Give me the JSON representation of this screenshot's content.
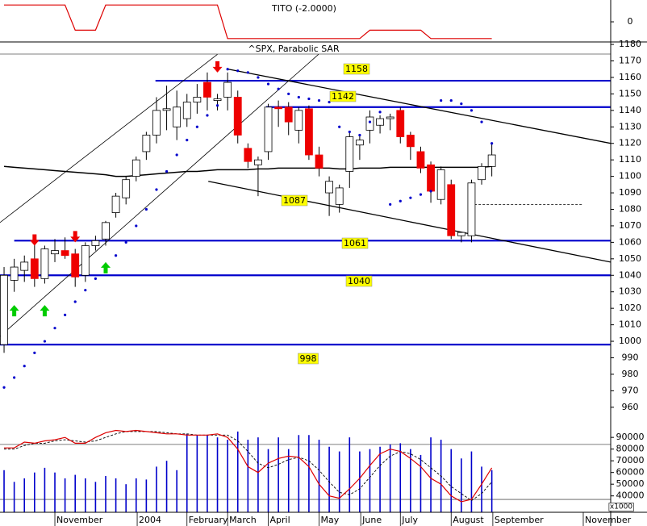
{
  "chart_data": {
    "type": "candlestick",
    "xlim": [
      -0.4,
      59.7
    ],
    "xticks": [
      {
        "value": 5.0,
        "label": "November"
      },
      {
        "value": 13.1,
        "label": "2004"
      },
      {
        "value": 18.0,
        "label": "February"
      },
      {
        "value": 22.0,
        "label": "March"
      },
      {
        "value": 26.0,
        "label": "April"
      },
      {
        "value": 31.0,
        "label": "May"
      },
      {
        "value": 35.1,
        "label": "June"
      },
      {
        "value": 39.0,
        "label": "July"
      },
      {
        "value": 44.0,
        "label": "August"
      },
      {
        "value": 48.1,
        "label": "September"
      },
      {
        "value": 57.0,
        "label": "November"
      }
    ],
    "indicator": {
      "title": "TITO (-2.0000)",
      "color": "#dd0000",
      "ylim": [
        -2.4,
        2.6
      ],
      "yticks": [
        0
      ],
      "values": [
        2,
        2,
        2,
        2,
        2,
        2,
        2,
        -1,
        -1,
        -1,
        2,
        2,
        2,
        2,
        2,
        2,
        2,
        2,
        2,
        2,
        2,
        2,
        -2,
        -2,
        -2,
        -2,
        -2,
        -2,
        -2,
        -2,
        -2,
        -2,
        -2,
        -2,
        -2,
        -2,
        -1,
        -1,
        -1,
        -1,
        -1,
        -1,
        -2,
        -2,
        -2,
        -2,
        -2,
        -2,
        -2
      ]
    },
    "price": {
      "title": "^SPX, Parabolic SAR",
      "ylim": [
        946.7,
        1181.5
      ],
      "yticks": [
        960,
        970,
        980,
        990,
        1000,
        1010,
        1020,
        1030,
        1040,
        1050,
        1060,
        1070,
        1080,
        1090,
        1100,
        1110,
        1120,
        1130,
        1140,
        1150,
        1160,
        1170,
        1180
      ],
      "x": [
        0,
        1,
        2,
        3,
        4,
        5,
        6,
        7,
        8,
        9,
        10,
        11,
        12,
        13,
        14,
        15,
        16,
        17,
        18,
        19,
        20,
        21,
        22,
        23,
        24,
        25,
        26,
        27,
        28,
        29,
        30,
        31,
        32,
        33,
        34,
        35,
        36,
        37,
        38,
        39,
        40,
        41,
        42,
        43,
        44,
        45,
        46,
        47,
        48
      ],
      "open": [
        998,
        1037,
        1043,
        1050,
        1038,
        1053,
        1055,
        1053,
        1040,
        1058,
        1062,
        1078,
        1087,
        1100,
        1115,
        1125,
        1140,
        1130,
        1135,
        1145,
        1157,
        1146,
        1148,
        1148,
        1117,
        1107,
        1115,
        1142,
        1142,
        1128,
        1141,
        1113,
        1090,
        1083,
        1103,
        1119,
        1128,
        1131,
        1135,
        1140,
        1125,
        1115,
        1107,
        1086,
        1095,
        1064,
        1064,
        1098,
        1106
      ],
      "high": [
        1045,
        1050,
        1052,
        1060,
        1058,
        1062,
        1063,
        1056,
        1060,
        1064,
        1073,
        1090,
        1100,
        1112,
        1127,
        1148,
        1155,
        1152,
        1150,
        1156,
        1163,
        1150,
        1163,
        1152,
        1120,
        1112,
        1144,
        1146,
        1145,
        1142,
        1143,
        1118,
        1100,
        1095,
        1127,
        1125,
        1140,
        1137,
        1138,
        1142,
        1127,
        1118,
        1109,
        1106,
        1098,
        1066,
        1098,
        1108,
        1120
      ],
      "low": [
        993,
        1030,
        1036,
        1033,
        1035,
        1048,
        1050,
        1033,
        1036,
        1055,
        1058,
        1075,
        1083,
        1097,
        1110,
        1120,
        1128,
        1122,
        1130,
        1138,
        1140,
        1140,
        1140,
        1120,
        1105,
        1088,
        1110,
        1130,
        1125,
        1120,
        1110,
        1100,
        1076,
        1078,
        1093,
        1110,
        1120,
        1126,
        1128,
        1120,
        1110,
        1102,
        1084,
        1083,
        1062,
        1060,
        1060,
        1095,
        1100
      ],
      "close": [
        1040,
        1045,
        1048,
        1038,
        1056,
        1055,
        1052,
        1039,
        1058,
        1061,
        1072,
        1088,
        1098,
        1110,
        1125,
        1140,
        1141,
        1142,
        1145,
        1148,
        1148,
        1147,
        1157,
        1125,
        1109,
        1110,
        1142,
        1141,
        1133,
        1140,
        1113,
        1105,
        1097,
        1093,
        1124,
        1122,
        1136,
        1135,
        1136,
        1124,
        1118,
        1105,
        1091,
        1104,
        1064,
        1066,
        1096,
        1106,
        1113
      ],
      "up_color": "#ffffff",
      "down_color": "#ee0000",
      "sar": {
        "color": "#0000cc",
        "values": [
          972,
          978,
          985,
          993,
          1000,
          1008,
          1016,
          1024,
          1031,
          1038,
          1045,
          1052,
          1060,
          1070,
          1080,
          1092,
          1103,
          1113,
          1122,
          1130,
          1137,
          1143,
          1165,
          1164,
          1163,
          1160,
          1156,
          1153,
          1150,
          1148,
          1147,
          1146,
          1145,
          1130,
          1127,
          1125,
          1133,
          1139,
          1083,
          1085,
          1087,
          1089,
          1091,
          1146,
          1146,
          1144,
          1140,
          1133,
          1120
        ]
      },
      "ma": {
        "color": "#000000",
        "values": [
          1106,
          1105.5,
          1105,
          1104.5,
          1104,
          1103.5,
          1103,
          1102.5,
          1102,
          1101.5,
          1101,
          1100,
          1100,
          1100.5,
          1101,
          1101.5,
          1102,
          1102.5,
          1103,
          1103,
          1103.5,
          1104,
          1104,
          1104,
          1104,
          1104.5,
          1104.5,
          1105,
          1105,
          1105,
          1105,
          1105,
          1105,
          1104.5,
          1104.5,
          1105,
          1105,
          1105,
          1105.5,
          1105.5,
          1105.5,
          1105.5,
          1105.5,
          1105.5,
          1105.5,
          1105.5,
          1105.5,
          1105.5,
          1106
        ]
      },
      "levels": [
        {
          "value": 1158,
          "from": 14.9
        },
        {
          "value": 1142,
          "from": 25.8
        },
        {
          "value": 1061,
          "from": 1.0
        },
        {
          "value": 1040,
          "from": -0.4
        },
        {
          "value": 998,
          "from": -0.4
        }
      ],
      "level_color": "#0000cc",
      "label_color": "#ffff00",
      "trendlines": [
        {
          "x": [
            22.06,
            59.7
          ],
          "y": [
            1165,
            1120
          ]
        },
        {
          "x": [
            20.1,
            59.7
          ],
          "y": [
            1097,
            1048
          ],
          "label": 1087
        },
        {
          "x": [
            -0.4,
            21.0
          ],
          "y": [
            1072,
            1174
          ]
        },
        {
          "x": [
            -0.4,
            30.95
          ],
          "y": [
            1003,
            1174
          ]
        },
        {
          "x": [
            45.9,
            56.9
          ],
          "y": [
            1083,
            1083
          ],
          "dashed": true
        }
      ],
      "buy_signals": {
        "color": "#00cc00",
        "x": [
          1,
          4,
          10
        ],
        "y": [
          1022,
          1022,
          1048
        ]
      },
      "sell_signals": {
        "color": "#ee0000",
        "x": [
          3,
          7,
          21
        ],
        "y": [
          1058,
          1060,
          1163
        ]
      }
    },
    "volume": {
      "ylim": [
        26000,
        97000
      ],
      "yticks": [
        40000,
        50000,
        60000,
        70000,
        80000,
        90000
      ],
      "unit_label": "x1000",
      "bar_color": "#0000cc",
      "hlines": [
        84000,
        37000
      ],
      "values": [
        62000,
        52000,
        55000,
        60000,
        64000,
        60000,
        55000,
        58000,
        55000,
        52000,
        57000,
        55000,
        50000,
        55000,
        54000,
        65000,
        70000,
        62000,
        93000,
        92000,
        92000,
        90000,
        88000,
        95000,
        88000,
        90000,
        80000,
        90000,
        80000,
        92000,
        92000,
        88000,
        82000,
        78000,
        90000,
        78000,
        80000,
        82000,
        84000,
        85000,
        80000,
        75000,
        90000,
        88000,
        80000,
        72000,
        78000,
        65000,
        62000
      ],
      "k": {
        "color": "#dd0000",
        "values": [
          81000,
          81000,
          86000,
          85000,
          87000,
          88000,
          90000,
          85000,
          85000,
          90000,
          94000,
          96000,
          95000,
          96000,
          95000,
          94000,
          93000,
          93000,
          92000,
          92000,
          92000,
          93000,
          90000,
          80000,
          65000,
          60000,
          68000,
          72000,
          74000,
          73000,
          65000,
          50000,
          40000,
          38000,
          46000,
          55000,
          66000,
          76000,
          80000,
          78000,
          72000,
          65000,
          55000,
          50000,
          40000,
          35000,
          37000,
          50000,
          64000
        ]
      },
      "d": {
        "color": "#000000",
        "values": [
          80000,
          80000,
          83000,
          85000,
          85000,
          87000,
          88000,
          87000,
          86000,
          87000,
          90000,
          93000,
          95000,
          95000,
          95000,
          95000,
          94000,
          93000,
          93000,
          92000,
          92000,
          92000,
          92000,
          87000,
          78000,
          68000,
          64000,
          67000,
          71000,
          73000,
          70000,
          62000,
          52000,
          43000,
          41000,
          46000,
          56000,
          66000,
          74000,
          78000,
          76000,
          71000,
          64000,
          57000,
          48000,
          42000,
          36000,
          42000,
          52000
        ]
      }
    }
  }
}
